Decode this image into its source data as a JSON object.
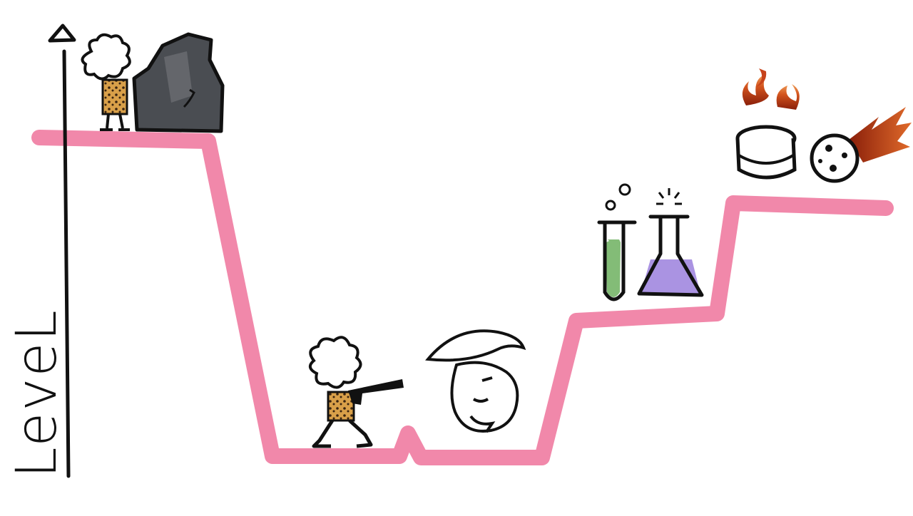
{
  "axis": {
    "label": "LeveL"
  },
  "colors": {
    "line": "#f07ba1",
    "ink": "#111111",
    "rock": "#4a4d52",
    "leopard": "#d9a049",
    "green_liquid": "#5aa64a",
    "purple_liquid": "#8d6fd8",
    "fire": "#c7431b"
  },
  "icons": [
    "caveman-icon",
    "rock-icon",
    "caveman-with-gun-icon",
    "conquistador-icon",
    "test-tube-icon",
    "flask-icon",
    "pill-icon",
    "meteor-icon",
    "fire-icon"
  ]
}
